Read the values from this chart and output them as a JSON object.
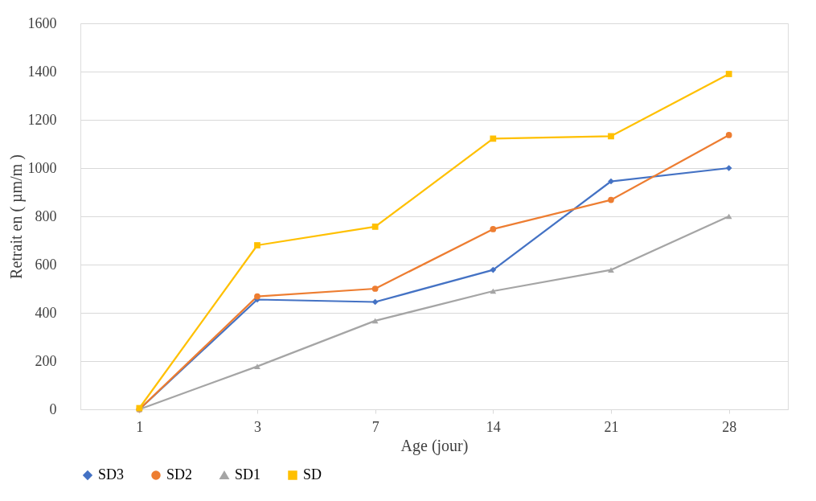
{
  "chart_data": {
    "type": "line",
    "xlabel": "Age (jour)",
    "ylabel": "Retrait en ( µm/m )",
    "categories": [
      "1",
      "3",
      "7",
      "14",
      "21",
      "28"
    ],
    "series": [
      {
        "name": "SD3",
        "color": "#4472c4",
        "marker": "diamond",
        "values": [
          0,
          455,
          445,
          578,
          945,
          1000
        ]
      },
      {
        "name": "SD2",
        "color": "#ed7d31",
        "marker": "circle",
        "values": [
          0,
          468,
          500,
          747,
          868,
          1137
        ]
      },
      {
        "name": "SD1",
        "color": "#a5a5a5",
        "marker": "triangle",
        "values": [
          0,
          178,
          367,
          490,
          578,
          800
        ]
      },
      {
        "name": "SD",
        "color": "#ffc000",
        "marker": "square",
        "values": [
          5,
          680,
          757,
          1122,
          1132,
          1390
        ]
      }
    ],
    "ylim": [
      0,
      1600
    ],
    "yticks": [
      0,
      200,
      400,
      600,
      800,
      1000,
      1200,
      1400,
      1600
    ],
    "grid": "y",
    "legend": "bottom"
  }
}
